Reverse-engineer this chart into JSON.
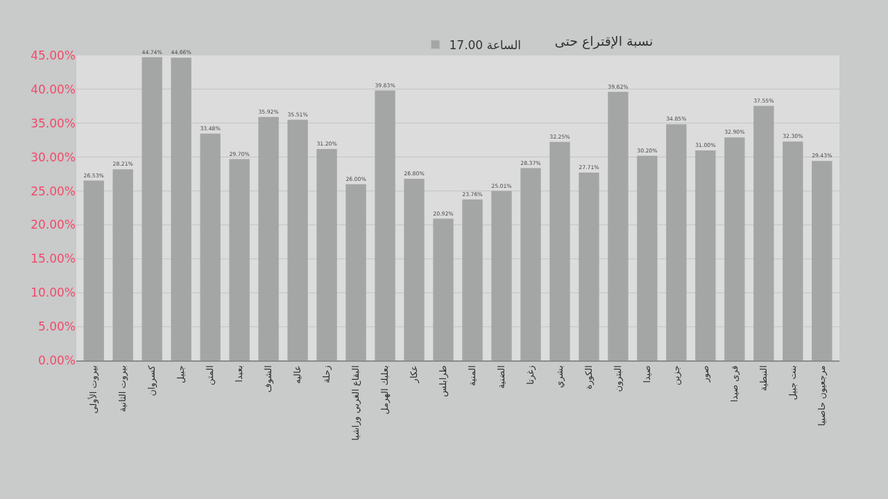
{
  "chart_data": {
    "type": "bar",
    "title": "نسبة الإقتراع حتى",
    "categories": [
      "بيروت الأولى",
      "بيروت الثانية",
      "كسروان",
      "جبيل",
      "المتن",
      "بعبدا",
      "الشوف",
      "عاليه",
      "زحلة",
      "البقاع الغربي وراشيا",
      "بعلبك الهرمل",
      "عكار",
      "طرابلس",
      "المنية",
      "الضنية",
      "زغرتا",
      "بشري",
      "الكورة",
      "البترون",
      "صيدا",
      "جزين",
      "صور",
      "قرى صيدا",
      "النبطية",
      "بنت جبيل",
      "مرجعيون حاصبيا"
    ],
    "series": [
      {
        "name": "الساعة 17.00",
        "color": "#a4a6a6",
        "values": [
          26.53,
          28.21,
          44.74,
          44.66,
          33.48,
          29.7,
          35.92,
          35.51,
          31.2,
          26.0,
          39.83,
          26.8,
          20.92,
          23.76,
          25.01,
          28.37,
          32.25,
          27.71,
          39.62,
          30.2,
          34.85,
          31.0,
          32.9,
          37.55,
          32.3,
          29.43
        ],
        "value_labels": [
          "26.53%",
          "28.21%",
          "44.74%",
          "44.66%",
          "33.48%",
          "29.70%",
          "35.92%",
          "35.51%",
          "31.20%",
          "26.00%",
          "39.83%",
          "26.80%",
          "20.92%",
          "23.76%",
          "25.01%",
          "28.37%",
          "32.25%",
          "27.71%",
          "39.62%",
          "30.20%",
          "34.85%",
          "31.00%",
          "32.90%",
          "37.55%",
          "32.30%",
          "29.43%"
        ]
      }
    ],
    "ylim": [
      0,
      45
    ],
    "yticks": [
      {
        "value": 0,
        "label": "0.00%"
      },
      {
        "value": 5,
        "label": "5.00%"
      },
      {
        "value": 10,
        "label": "10.00%"
      },
      {
        "value": 15,
        "label": "15.00%"
      },
      {
        "value": 20,
        "label": "20.00%"
      },
      {
        "value": 25,
        "label": "25.00%"
      },
      {
        "value": 30,
        "label": "30.00%"
      },
      {
        "value": 35,
        "label": "35.00%"
      },
      {
        "value": 40,
        "label": "40.00%"
      },
      {
        "value": 45,
        "label": "45.00%"
      }
    ],
    "grid": "y",
    "legend": "top"
  }
}
